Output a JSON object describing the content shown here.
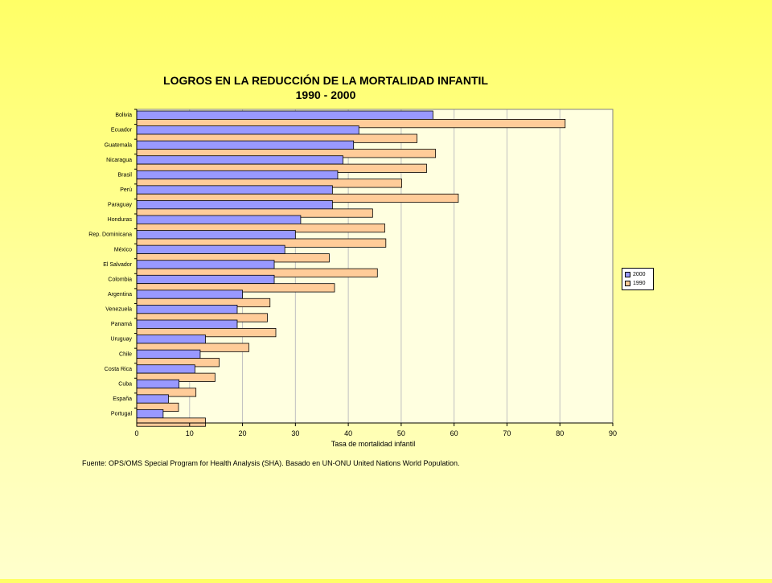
{
  "chart_data": {
    "type": "bar",
    "orientation": "horizontal",
    "title": "LOGROS EN LA REDUCCIÓN DE LA MORTALIDAD INFANTIL",
    "subtitle": "1990 - 2000",
    "xlabel": "Tasa de mortalidad infantil",
    "ylabel": "",
    "xlim": [
      0,
      90
    ],
    "xticks": [
      0,
      10,
      20,
      30,
      40,
      50,
      60,
      70,
      80,
      90
    ],
    "grid": true,
    "legend_position": "right",
    "categories": [
      "Bolivia",
      "Ecuador",
      "Guatemala",
      "Nicaragua",
      "Brasil",
      "Perú",
      "Paraguay",
      "Honduras",
      "Rep. Dominicana",
      "México",
      "El Salvador",
      "Colombia",
      "Argentina",
      "Venezuela",
      "Panamá",
      "Uruguay",
      "Chile",
      "Costa Rica",
      "Cuba",
      "España",
      "Portugal"
    ],
    "series": [
      {
        "name": "2000",
        "color": "#9999ff",
        "values": [
          56,
          42,
          41,
          39,
          38,
          37,
          37,
          31,
          30,
          28,
          26,
          26,
          20,
          19,
          19,
          13,
          12,
          11,
          8,
          6,
          5
        ]
      },
      {
        "name": "1990",
        "color": "#ffcc99",
        "values": [
          81,
          53,
          56.5,
          54.8,
          50.1,
          60.8,
          44.6,
          46.9,
          47.1,
          36.4,
          45.5,
          37.4,
          25.2,
          24.7,
          26.3,
          21.2,
          15.6,
          14.8,
          11.2,
          7.9,
          13
        ]
      }
    ]
  },
  "source_note": "Fuente: OPS/OMS Special Program for Health Analysis (SHA). Basado en UN-ONU United Nations World Population.",
  "colors": {
    "plot_background": "#ffffe0",
    "gridline": "#c0c0c0"
  }
}
